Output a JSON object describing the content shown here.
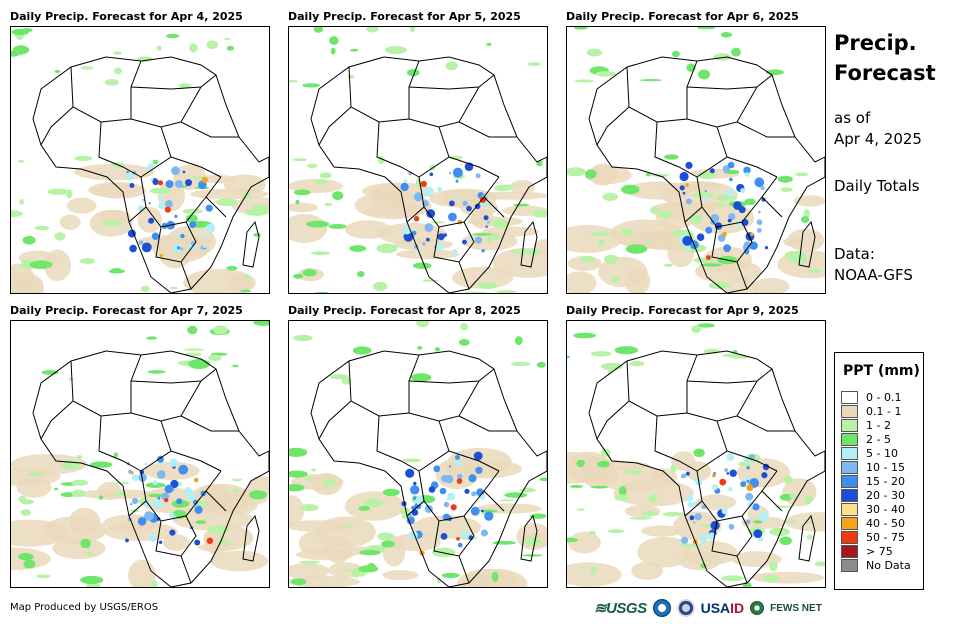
{
  "panels": [
    {
      "title": "Daily Precip. Forecast for Apr 4, 2025"
    },
    {
      "title": "Daily Precip. Forecast for Apr 5, 2025"
    },
    {
      "title": "Daily Precip. Forecast for Apr 6, 2025"
    },
    {
      "title": "Daily Precip. Forecast for Apr 7, 2025"
    },
    {
      "title": "Daily Precip. Forecast for Apr 8, 2025"
    },
    {
      "title": "Daily Precip. Forecast for Apr 9, 2025"
    }
  ],
  "sidebar": {
    "title_line1": "Precip.",
    "title_line2": "Forecast",
    "asof_line1": "as of",
    "asof_line2": "Apr 4, 2025",
    "totals": "Daily Totals",
    "data_line1": "Data:",
    "data_line2": "NOAA-GFS"
  },
  "legend": {
    "title": "PPT (mm)",
    "items": [
      {
        "label": "0 - 0.1",
        "color": "#ffffff"
      },
      {
        "label": "0.1 - 1",
        "color": "#ead9bb"
      },
      {
        "label": "1 - 2",
        "color": "#b8f2a6"
      },
      {
        "label": "2 - 5",
        "color": "#6ee66a"
      },
      {
        "label": "5 - 10",
        "color": "#b3f0f5"
      },
      {
        "label": "10 - 15",
        "color": "#7fb7f2"
      },
      {
        "label": "15 - 20",
        "color": "#3f8ff0"
      },
      {
        "label": "20 - 30",
        "color": "#1b4fd6"
      },
      {
        "label": "30 - 40",
        "color": "#fde08a"
      },
      {
        "label": "40 - 50",
        "color": "#f7a21b"
      },
      {
        "label": "50 - 75",
        "color": "#ef3b12"
      },
      {
        "label": "> 75",
        "color": "#a6191b"
      },
      {
        "label": "No Data",
        "color": "#8c8c8c"
      }
    ]
  },
  "footer": {
    "credit": "Map Produced by USGS/EROS",
    "logo_usgs": "≋USGS",
    "logo_usaid_left": "USA",
    "logo_usaid_right": "ID",
    "logo_fews": "FEWS NET"
  }
}
